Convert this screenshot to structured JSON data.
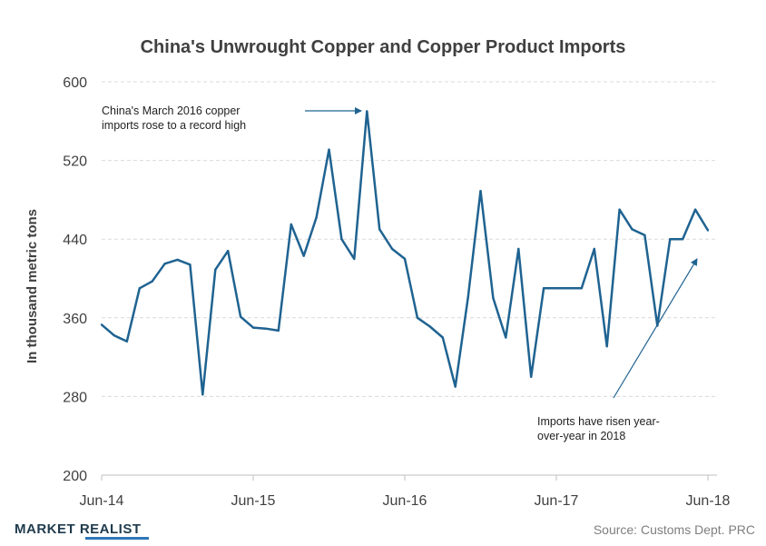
{
  "colors": {
    "line": "#1f6391",
    "grid": "#d9d9d9",
    "text": "#404040",
    "source": "#7f7f7f",
    "logo": "#1f3b4d",
    "logo_accent": "#2e75b6"
  },
  "brand": {
    "logo_text": "MARKET REALIST"
  },
  "source": "Source:  Customs Dept. PRC",
  "chart_data": {
    "type": "line",
    "title": "China's Unwrought Copper and Copper Product Imports",
    "ylabel": "In thousand metric tons",
    "xlabel": "",
    "ylim": [
      200,
      600
    ],
    "yticks": [
      "200",
      "280",
      "360",
      "440",
      "520",
      "600"
    ],
    "xticks": [
      "Jun-14",
      "Jun-15",
      "Jun-16",
      "Jun-17",
      "Jun-18"
    ],
    "grid": true,
    "series": [
      {
        "x": [
          "Jun-14",
          "Jul-14",
          "Aug-14",
          "Sep-14",
          "Oct-14",
          "Nov-14",
          "Dec-14",
          "Jan-15",
          "Feb-15",
          "Mar-15",
          "Apr-15",
          "May-15",
          "Jun-15",
          "Jul-15",
          "Aug-15",
          "Sep-15",
          "Oct-15",
          "Nov-15",
          "Dec-15",
          "Jan-16",
          "Feb-16",
          "Mar-16",
          "Apr-16",
          "May-16",
          "Jun-16",
          "Jul-16",
          "Aug-16",
          "Sep-16",
          "Oct-16",
          "Nov-16",
          "Dec-16",
          "Jan-17",
          "Feb-17",
          "Mar-17",
          "Apr-17",
          "May-17",
          "Jun-17",
          "Jul-17",
          "Aug-17",
          "Sep-17",
          "Oct-17",
          "Nov-17",
          "Dec-17",
          "Jan-18",
          "Feb-18",
          "Mar-18",
          "Apr-18",
          "May-18",
          "Jun-18"
        ],
        "values": [
          353,
          342,
          336,
          390,
          397,
          415,
          419,
          414,
          282,
          409,
          428,
          361,
          350,
          349,
          347,
          455,
          423,
          462,
          531,
          440,
          420,
          570,
          450,
          430,
          420,
          360,
          351,
          340,
          290,
          380,
          489,
          380,
          340,
          430,
          300,
          390,
          390,
          390,
          390,
          430,
          331,
          470,
          450,
          444,
          352,
          440,
          440,
          470,
          449
        ]
      }
    ],
    "annotations": [
      {
        "lines": [
          "China's March 2016 copper",
          "imports rose to a record high"
        ]
      },
      {
        "lines": [
          "Imports have risen year-",
          "over-year  in 2018"
        ]
      }
    ]
  }
}
